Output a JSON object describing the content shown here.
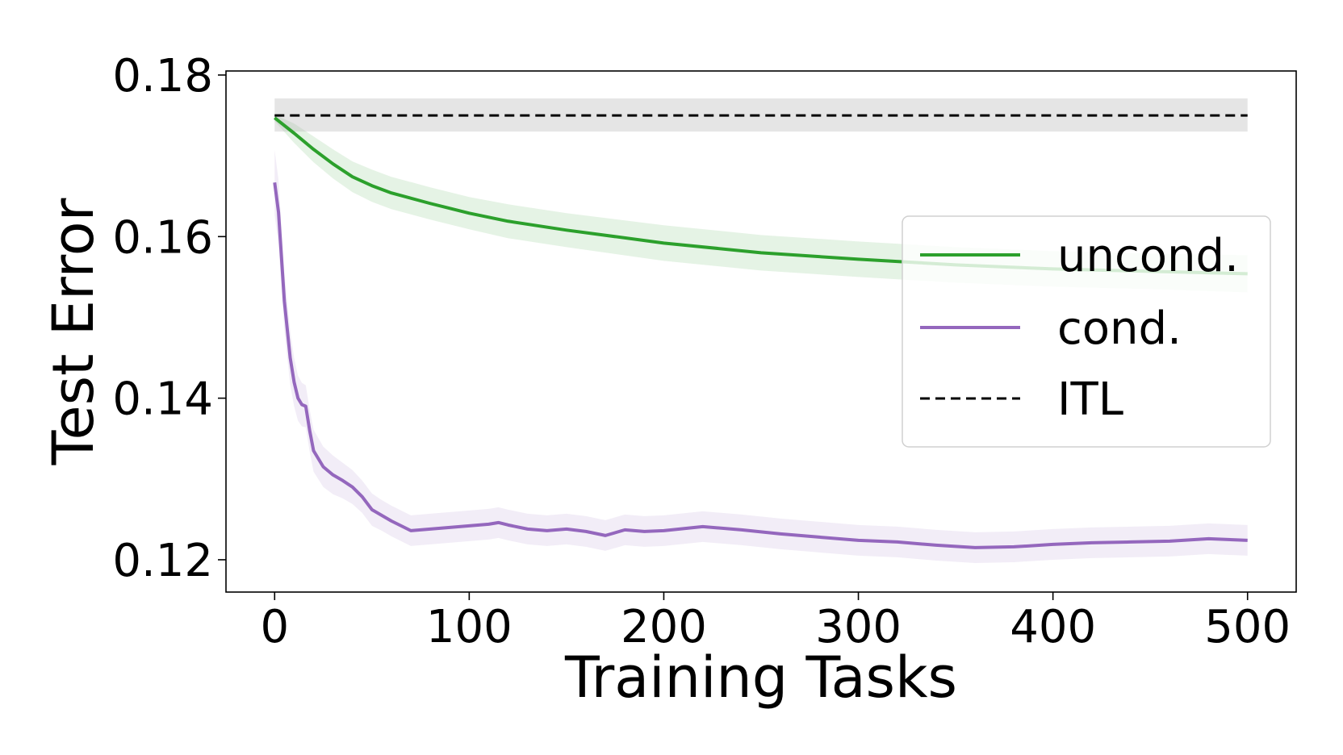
{
  "chart_data": {
    "type": "line",
    "title": "",
    "xlabel": "Training Tasks",
    "ylabel": "Test Error",
    "xlim": [
      -25,
      525
    ],
    "ylim": [
      0.116,
      0.1805
    ],
    "xticks": [
      0,
      100,
      200,
      300,
      400,
      500
    ],
    "xtick_labels": [
      "0",
      "100",
      "200",
      "300",
      "400",
      "500"
    ],
    "yticks": [
      0.12,
      0.14,
      0.16,
      0.18
    ],
    "ytick_labels": [
      "0.12",
      "0.14",
      "0.16",
      "0.18"
    ],
    "grid": false,
    "legend_position": "center-right",
    "series": [
      {
        "name": "uncond.",
        "color": "#2ca02c",
        "style": "solid",
        "x": [
          0,
          10,
          20,
          30,
          40,
          50,
          60,
          80,
          100,
          120,
          150,
          200,
          250,
          300,
          350,
          400,
          450,
          500
        ],
        "y": [
          0.1747,
          0.1728,
          0.1708,
          0.169,
          0.1674,
          0.1663,
          0.1654,
          0.1641,
          0.1629,
          0.1619,
          0.1608,
          0.1592,
          0.158,
          0.1572,
          0.1565,
          0.156,
          0.1557,
          0.1554
        ],
        "band_half_width": [
          0.0004,
          0.0012,
          0.0016,
          0.0018,
          0.0019,
          0.002,
          0.002,
          0.002,
          0.002,
          0.0021,
          0.0021,
          0.0022,
          0.0022,
          0.0022,
          0.0022,
          0.0022,
          0.0022,
          0.0023
        ]
      },
      {
        "name": "cond.",
        "color": "#9467bd",
        "style": "solid",
        "x": [
          0,
          2,
          5,
          8,
          10,
          12,
          14,
          16,
          18,
          20,
          25,
          30,
          35,
          40,
          45,
          50,
          55,
          60,
          70,
          80,
          90,
          100,
          110,
          115,
          120,
          130,
          140,
          150,
          160,
          170,
          180,
          190,
          200,
          220,
          240,
          260,
          280,
          300,
          320,
          340,
          360,
          380,
          400,
          420,
          440,
          460,
          480,
          500
        ],
        "y": [
          0.1667,
          0.163,
          0.152,
          0.145,
          0.142,
          0.14,
          0.1392,
          0.139,
          0.136,
          0.1335,
          0.1315,
          0.1305,
          0.1298,
          0.129,
          0.1278,
          0.1262,
          0.1255,
          0.1248,
          0.1236,
          0.1238,
          0.124,
          0.1242,
          0.1244,
          0.1246,
          0.1243,
          0.1238,
          0.1236,
          0.1238,
          0.1235,
          0.123,
          0.1237,
          0.1235,
          0.1236,
          0.1241,
          0.1237,
          0.1232,
          0.1228,
          0.1224,
          0.1222,
          0.1218,
          0.1215,
          0.1216,
          0.1219,
          0.1221,
          0.1222,
          0.1223,
          0.1226,
          0.1224
        ],
        "band_half_width": [
          0.004,
          0.004,
          0.0036,
          0.0033,
          0.003,
          0.0028,
          0.0027,
          0.0026,
          0.0026,
          0.0026,
          0.0025,
          0.0024,
          0.0022,
          0.0021,
          0.002,
          0.002,
          0.0019,
          0.0019,
          0.0019,
          0.0019,
          0.0019,
          0.0019,
          0.0019,
          0.0019,
          0.0019,
          0.0019,
          0.0019,
          0.0019,
          0.0019,
          0.0019,
          0.0019,
          0.0019,
          0.0019,
          0.0019,
          0.0019,
          0.0019,
          0.0019,
          0.0019,
          0.0019,
          0.0019,
          0.0019,
          0.0019,
          0.0019,
          0.0019,
          0.0019,
          0.0019,
          0.0019,
          0.0019
        ]
      },
      {
        "name": "ITL",
        "color": "#000000",
        "style": "dashed",
        "x": [
          0,
          500
        ],
        "y": [
          0.175,
          0.175
        ],
        "band": [
          0.173,
          0.1771
        ],
        "band_color": "#a8a8a8"
      }
    ]
  }
}
